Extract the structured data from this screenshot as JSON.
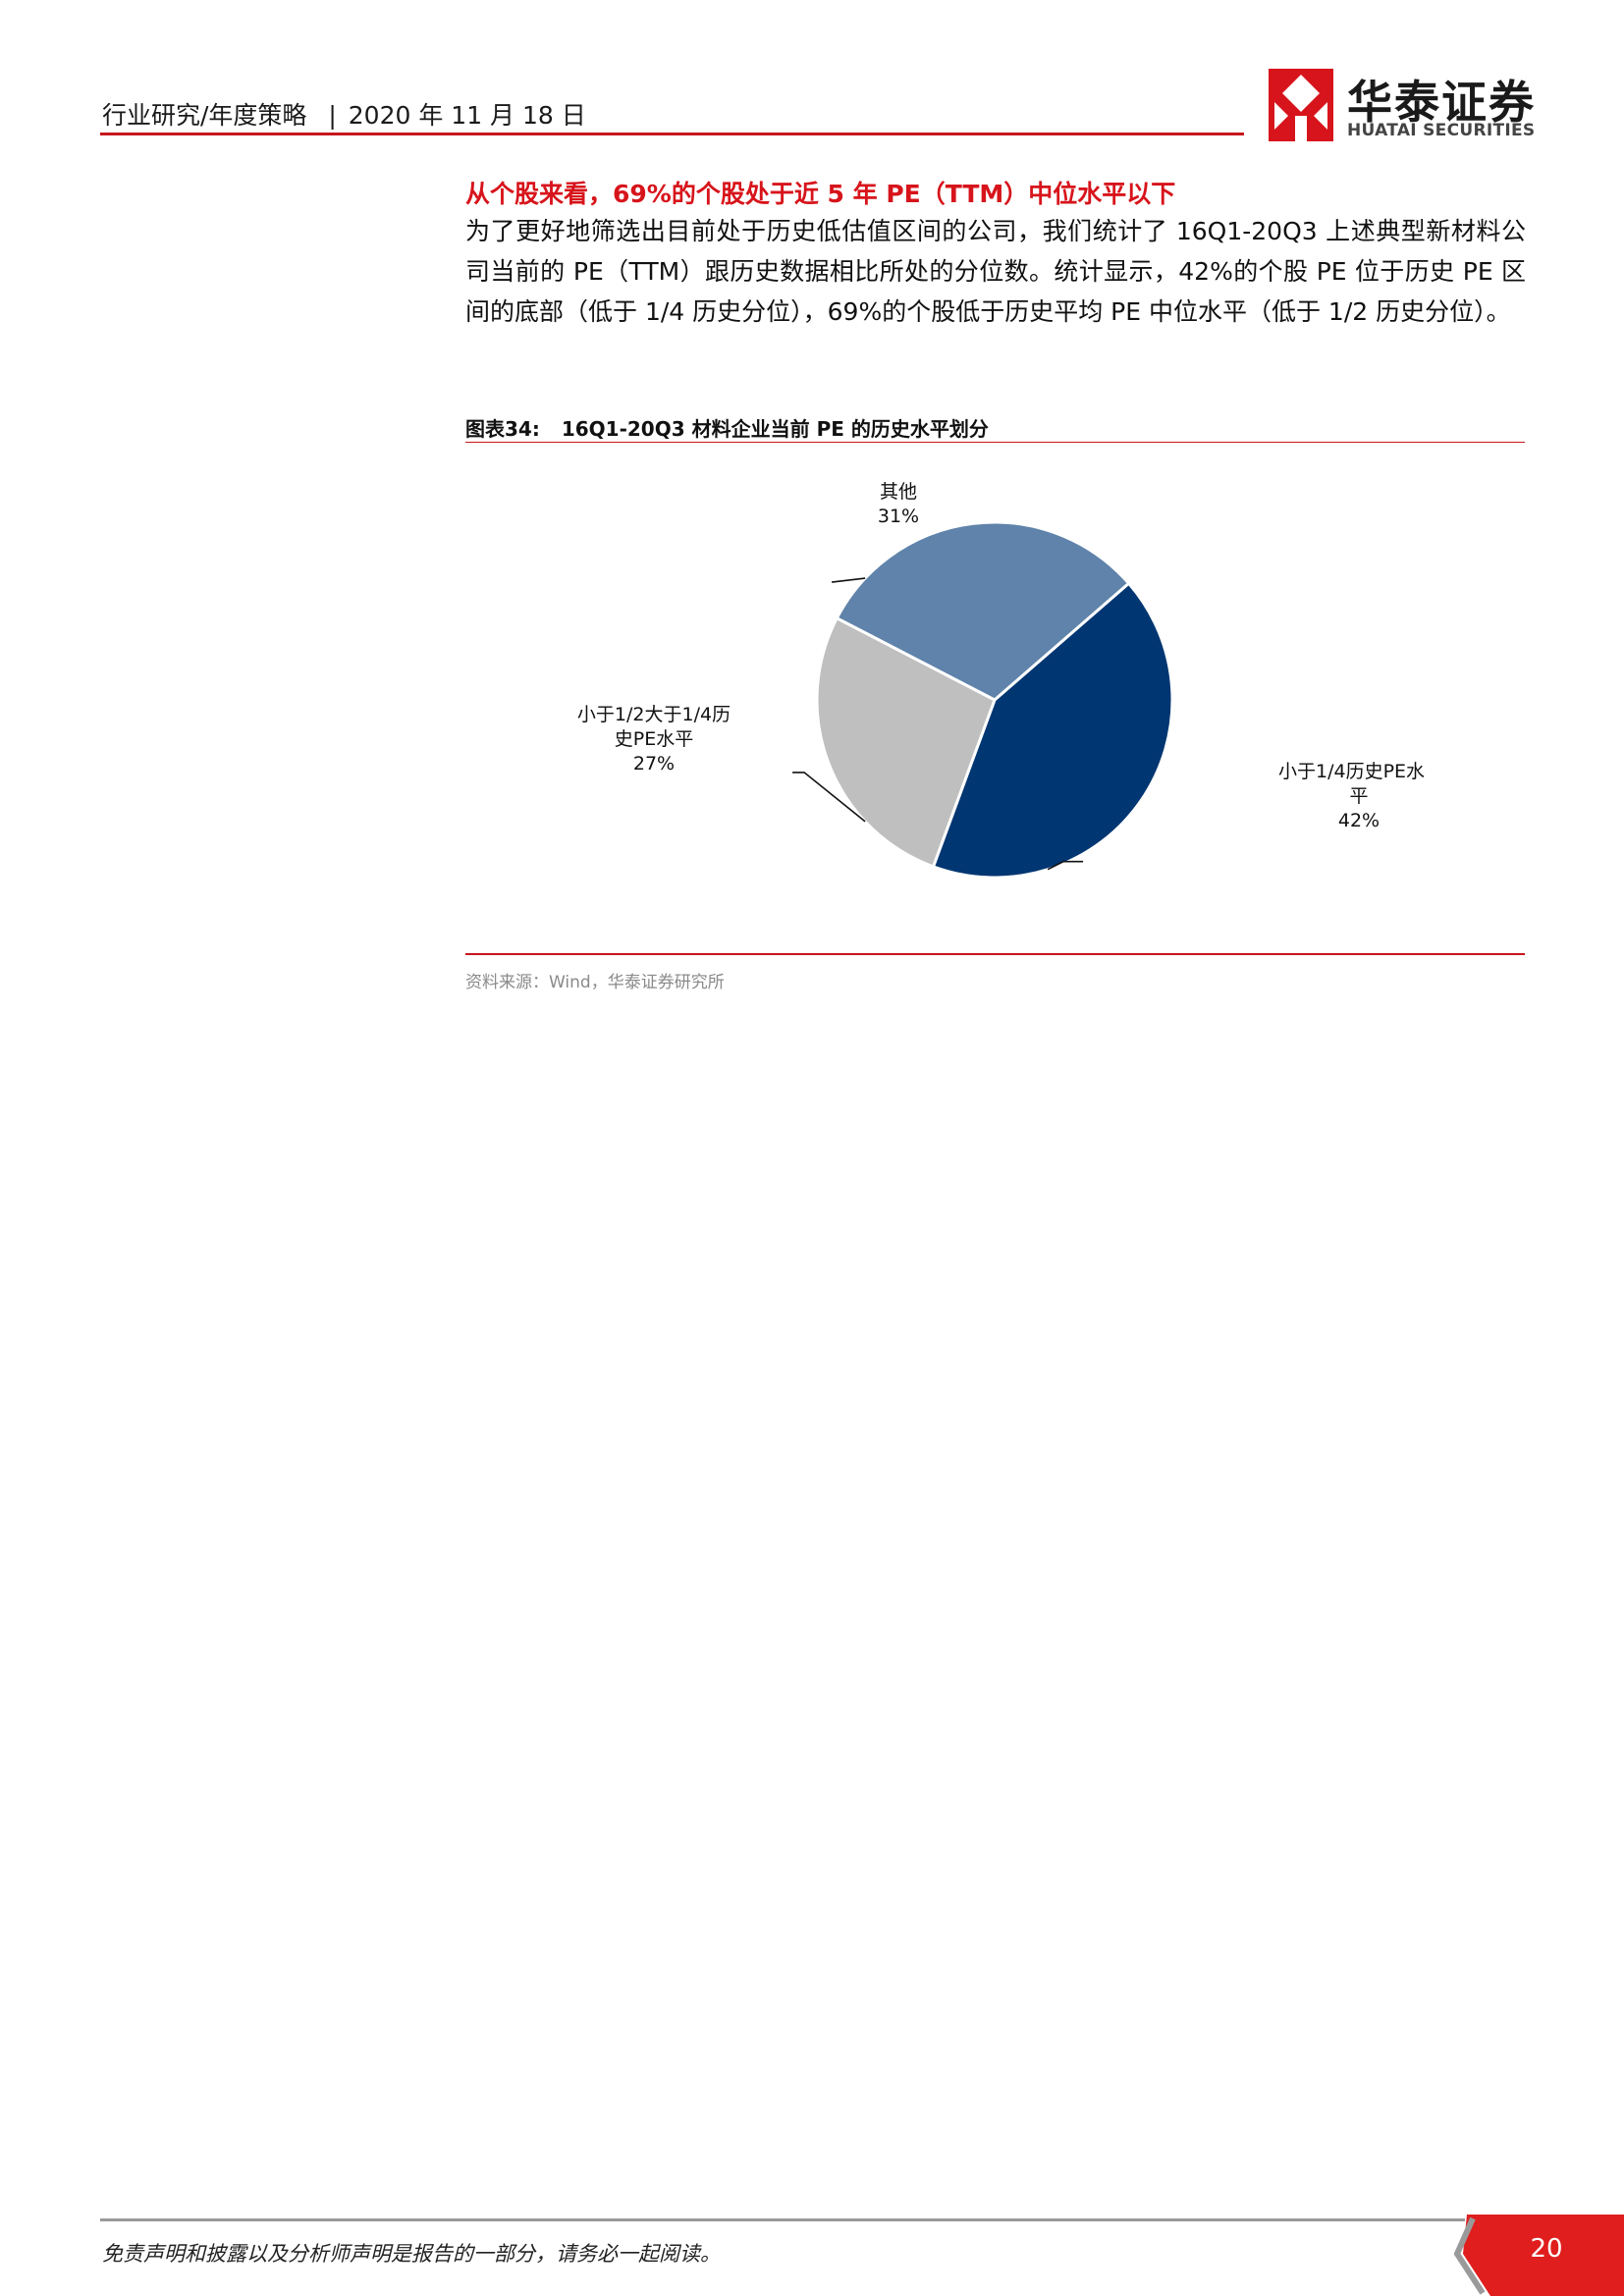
{
  "header": {
    "category": "行业研究/年度策略",
    "separator": "|",
    "date": "2020 年 11 月 18 日",
    "brand_cn": "华泰证券",
    "brand_en": "HUATAI SECURITIES",
    "accent_color": "#c8161d"
  },
  "section": {
    "title": "从个股来看，69%的个股处于近 5 年 PE（TTM）中位水平以下",
    "paragraph": "为了更好地筛选出目前处于历史低估值区间的公司，我们统计了 16Q1-20Q3 上述典型新材料公司当前的 PE（TTM）跟历史数据相比所处的分位数。统计显示，42%的个股 PE 位于历史 PE 区间的底部（低于 1/4 历史分位），69%的个股低于历史平均 PE 中位水平（低于 1/2 历史分位）。"
  },
  "figure": {
    "number": "图表34:",
    "title": "16Q1-20Q3 材料企业当前 PE 的历史水平划分",
    "source": "资料来源：Wind，华泰证券研究所"
  },
  "chart_data": {
    "type": "pie",
    "title": "",
    "slices": [
      {
        "label_lines": [
          "小于1/4历史PE水",
          "平"
        ],
        "value": 42,
        "value_label": "42%",
        "color": "#003672"
      },
      {
        "label_lines": [
          "小于1/2大于1/4历",
          "史PE水平"
        ],
        "value": 27,
        "value_label": "27%",
        "color": "#bfbfbf"
      },
      {
        "label_lines": [
          "其他"
        ],
        "value": 31,
        "value_label": "31%",
        "color": "#5f83aa"
      }
    ],
    "start_angle_deg": 49,
    "direction": "clockwise",
    "legend": "none"
  },
  "footer": {
    "disclaimer": "免责声明和披露以及分析师声明是报告的一部分，请务必一起阅读。",
    "page_number": "20"
  }
}
